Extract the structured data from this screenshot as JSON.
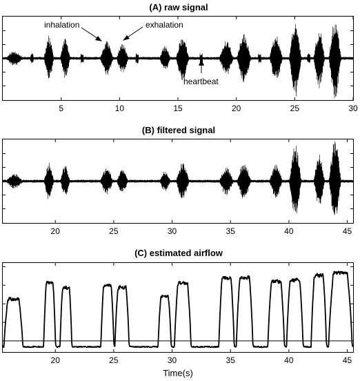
{
  "chart_data": [
    {
      "type": "line",
      "title": "(A) raw signal",
      "xlabel": "",
      "ylabel": "",
      "xlim": [
        0,
        30
      ],
      "ylim": [
        -1,
        1
      ],
      "xticks": [
        5,
        10,
        15,
        20,
        25,
        30
      ],
      "grid": false,
      "annotations": [
        {
          "text": "inhalation",
          "x": 8.9,
          "y": 0.45
        },
        {
          "text": "exhalation",
          "x": 10.2,
          "y": 0.4
        },
        {
          "text": "heartbeat",
          "x": 16.9,
          "y": -0.3
        }
      ],
      "bursts": [
        {
          "start": 0.2,
          "end": 1.8,
          "amp": 0.18
        },
        {
          "start": 3.5,
          "end": 4.4,
          "amp": 0.55
        },
        {
          "start": 4.9,
          "end": 5.8,
          "amp": 0.48
        },
        {
          "start": 8.3,
          "end": 9.5,
          "amp": 0.42
        },
        {
          "start": 9.7,
          "end": 10.8,
          "amp": 0.35
        },
        {
          "start": 13.4,
          "end": 14.4,
          "amp": 0.3
        },
        {
          "start": 14.8,
          "end": 16.0,
          "amp": 0.55
        },
        {
          "start": 18.5,
          "end": 19.8,
          "amp": 0.42
        },
        {
          "start": 20.0,
          "end": 21.3,
          "amp": 0.58
        },
        {
          "start": 22.8,
          "end": 24.0,
          "amp": 0.55
        },
        {
          "start": 24.5,
          "end": 25.6,
          "amp": 0.95
        },
        {
          "start": 26.6,
          "end": 27.6,
          "amp": 0.72
        },
        {
          "start": 27.9,
          "end": 29.0,
          "amp": 1.0
        }
      ],
      "heartbeats_at": [
        2.5,
        6.8,
        11.5,
        17.0,
        22.0,
        26.2
      ],
      "series": [
        {
          "values_note": "",
          "color": "#000000"
        }
      ]
    },
    {
      "type": "line",
      "title": "(B) filtered signal",
      "xlabel": "",
      "ylabel": "",
      "xlim": [
        15.5,
        45.5
      ],
      "ylim": [
        -1,
        1
      ],
      "xticks": [
        20,
        25,
        30,
        35,
        40,
        45
      ],
      "grid": false,
      "bursts": [
        {
          "start": 15.7,
          "end": 17.3,
          "amp": 0.18
        },
        {
          "start": 19.0,
          "end": 19.9,
          "amp": 0.45
        },
        {
          "start": 20.4,
          "end": 21.3,
          "amp": 0.38
        },
        {
          "start": 23.8,
          "end": 25.0,
          "amp": 0.32
        },
        {
          "start": 25.2,
          "end": 26.3,
          "amp": 0.28
        },
        {
          "start": 28.9,
          "end": 29.9,
          "amp": 0.25
        },
        {
          "start": 30.3,
          "end": 31.5,
          "amp": 0.45
        },
        {
          "start": 34.0,
          "end": 35.3,
          "amp": 0.35
        },
        {
          "start": 35.5,
          "end": 36.8,
          "amp": 0.45
        },
        {
          "start": 38.3,
          "end": 39.5,
          "amp": 0.42
        },
        {
          "start": 40.0,
          "end": 41.1,
          "amp": 0.88
        },
        {
          "start": 42.1,
          "end": 43.1,
          "amp": 0.65
        },
        {
          "start": 43.4,
          "end": 44.5,
          "amp": 1.0
        }
      ]
    },
    {
      "type": "line",
      "title": "(C) estimated airflow",
      "xlabel": "Time(s)",
      "ylabel": "",
      "xlim": [
        15.5,
        45.5
      ],
      "ylim": [
        -0.15,
        1.05
      ],
      "xticks": [
        20,
        25,
        30,
        35,
        40,
        45
      ],
      "hline_y": 0,
      "grid": false,
      "humps": [
        {
          "start": 15.6,
          "end": 17.2,
          "level": 0.56
        },
        {
          "start": 19.0,
          "end": 20.0,
          "level": 0.78
        },
        {
          "start": 20.4,
          "end": 21.4,
          "level": 0.72
        },
        {
          "start": 23.9,
          "end": 25.0,
          "level": 0.75
        },
        {
          "start": 25.1,
          "end": 26.3,
          "level": 0.72
        },
        {
          "start": 28.8,
          "end": 29.9,
          "level": 0.6
        },
        {
          "start": 30.2,
          "end": 31.6,
          "level": 0.78
        },
        {
          "start": 34.0,
          "end": 35.3,
          "level": 0.85
        },
        {
          "start": 35.5,
          "end": 36.9,
          "level": 0.85
        },
        {
          "start": 38.2,
          "end": 39.6,
          "level": 0.8
        },
        {
          "start": 39.8,
          "end": 41.2,
          "level": 0.82
        },
        {
          "start": 41.9,
          "end": 43.2,
          "level": 0.88
        },
        {
          "start": 43.4,
          "end": 45.4,
          "level": 0.92
        }
      ]
    }
  ]
}
